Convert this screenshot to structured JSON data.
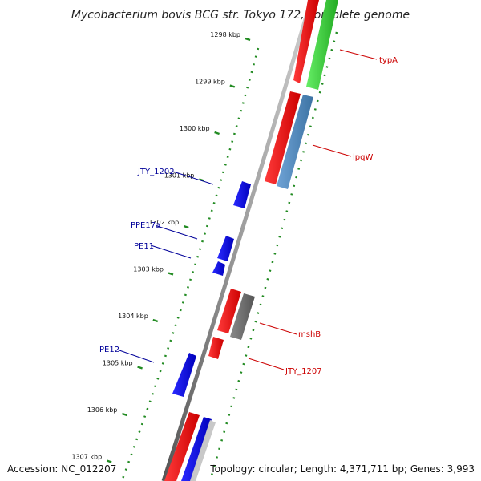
{
  "title": "Mycobacterium bovis BCG str. Tokyo 172, complete genome",
  "accession": "Accession: NC_012207",
  "summary": "Topology: circular; Length: 4,371,711 bp; Genes: 3,993",
  "ticks": [
    "1298 kbp",
    "1299 kbp",
    "1300 kbp",
    "1301 kbp",
    "1302 kbp",
    "1303 kbp",
    "1304 kbp",
    "1305 kbp",
    "1306 kbp",
    "1307 kbp"
  ],
  "genes": [
    {
      "label": "typA",
      "strand": "forward",
      "type": "CDS"
    },
    {
      "label": "lpqW",
      "strand": "forward",
      "type": "CDS"
    },
    {
      "label": "JTY_1202",
      "strand": "reverse",
      "type": "CDS"
    },
    {
      "label": "PPE17a",
      "strand": "reverse",
      "type": "CDS"
    },
    {
      "label": "PE11",
      "strand": "reverse",
      "type": "CDS"
    },
    {
      "label": "mshB",
      "strand": "forward",
      "type": "CDS"
    },
    {
      "label": "JTY_1207",
      "strand": "forward",
      "type": "CDS"
    },
    {
      "label": "PE12",
      "strand": "reverse",
      "type": "CDS"
    }
  ],
  "colors": {
    "forward_cds": "#ff0000",
    "reverse_cds": "#0000ff",
    "gene_green": "#33cc33",
    "gene_steelblue": "#4682b4",
    "gene_gray": "#666666",
    "backbone": "#808080",
    "tick": "#228b22",
    "label_forward": "#cc0000",
    "label_reverse": "#000099"
  }
}
